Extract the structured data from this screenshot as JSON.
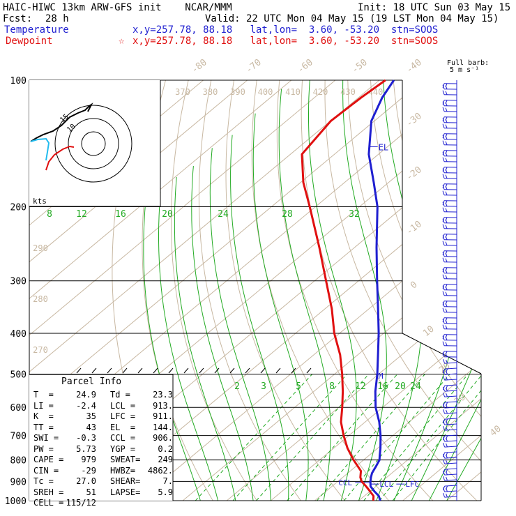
{
  "header": {
    "line1_left": "HAIC-HIWC 13km ARW-GFS init    NCAR/MMM",
    "line1_right": "Init: 18 UTC Sun 03 May 15",
    "fcst_label": "Fcst:",
    "fcst_value": "28 h",
    "valid": "Valid: 22 UTC Mon 04 May 15 (19 LST Mon 04 May 15)",
    "temp_label": "Temperature",
    "temp_info": "x,y=257.78, 88.18   lat,lon=  3.60, -53.20  stn=SOOS",
    "dew_label": "Dewpoint",
    "dew_star": "☆",
    "dew_info": "x,y=257.78, 88.18   lat,lon=  3.60, -53.20  stn=SOOS",
    "barb_title1": "Full barb:",
    "barb_title2": "5 m s⁻¹"
  },
  "hodograph": {
    "kts_label": "kts",
    "ring_labels": [
      "10",
      "15"
    ]
  },
  "parcel": {
    "title": "Parcel Info",
    "rows": [
      [
        "T  =",
        "24.9",
        "Td =",
        "23.3"
      ],
      [
        "LI =",
        "-2.4",
        "LCL =",
        "913."
      ],
      [
        "K  =",
        "35",
        "LFC =",
        "911."
      ],
      [
        "TT =",
        "43",
        "EL  =",
        "144."
      ],
      [
        "SWI =",
        "-0.3",
        "CCL =",
        "906."
      ],
      [
        "PW =",
        "5.73",
        "YGP =",
        "0.2"
      ],
      [
        "CAPE =",
        "979",
        "SWEAT=",
        "249"
      ],
      [
        "CIN =",
        "-29",
        "HWBZ=",
        "4862."
      ],
      [
        "Tc =",
        "27.0",
        "SHEAR=",
        "7."
      ],
      [
        "SREH =",
        "51",
        "LAPSE=",
        "5.9"
      ],
      [
        "CELL =",
        "115/12",
        "",
        ""
      ]
    ]
  },
  "chart_data": {
    "type": "line",
    "title": "",
    "ylabel": "",
    "xlabel": "",
    "y_scale": "log-pressure",
    "ylim_hPa": [
      1000,
      100
    ],
    "pressure_ticks": [
      100,
      200,
      300,
      400,
      500,
      600,
      700,
      800,
      900,
      1000
    ],
    "isotherm_labels": [
      "-80",
      "-70",
      "-60",
      "-50",
      "-40",
      "-30",
      "-20",
      "-10",
      "0",
      "10",
      "20",
      "30",
      "40"
    ],
    "theta_labels_upper": [
      "370",
      "380",
      "390",
      "400",
      "410",
      "420",
      "430",
      "440"
    ],
    "theta_labels_left": [
      "290",
      "280",
      "270"
    ],
    "theta_e_labels": [
      "8",
      "12",
      "16",
      "20",
      "24",
      "28",
      "32"
    ],
    "mixing_ratio_labels": [
      "2",
      "3",
      "5",
      "8",
      "12",
      "16",
      "20",
      "24"
    ],
    "annotations": [
      "EL",
      "M",
      "CCL",
      "LCL",
      "LFC"
    ],
    "series": [
      {
        "name": "Temperature",
        "color": "#1f1fd0",
        "p": [
          1000,
          975,
          950,
          925,
          900,
          880,
          860,
          850,
          830,
          800,
          780,
          750,
          700,
          650,
          600,
          550,
          500,
          450,
          400,
          350,
          300,
          250,
          200,
          175,
          150,
          125,
          110,
          100
        ],
        "t": [
          24.9,
          23.3,
          21.0,
          18.8,
          17.4,
          16.4,
          15.5,
          15.2,
          14.6,
          13.6,
          12.4,
          10.6,
          7.2,
          3.2,
          -1.6,
          -6.0,
          -10.3,
          -15.4,
          -21.1,
          -27.9,
          -35.8,
          -45.0,
          -55.9,
          -63.4,
          -72.2,
          -80.7,
          -84.6,
          -86.7
        ]
      },
      {
        "name": "Dewpoint",
        "color": "#e01010",
        "p": [
          1000,
          975,
          950,
          925,
          900,
          880,
          850,
          800,
          780,
          750,
          700,
          650,
          600,
          550,
          500,
          450,
          400,
          350,
          300,
          250,
          200,
          175,
          150,
          125,
          110,
          100
        ],
        "t": [
          23.3,
          22.1,
          20.0,
          17.8,
          15.4,
          14.0,
          12.4,
          7.7,
          5.9,
          3.1,
          -1.2,
          -5.5,
          -9.2,
          -13.4,
          -18.3,
          -24.0,
          -31.2,
          -38.4,
          -47.4,
          -58.0,
          -71.3,
          -79.4,
          -87.4,
          -89.9,
          -89.4,
          -88.6
        ]
      }
    ],
    "wind_barbs_note": "Wind barbs plotted on right column; full barb = 5 m/s"
  },
  "colors": {
    "temperature": "#1f1fd0",
    "dewpoint": "#e01010",
    "isotherm": "#c8b8a2",
    "dry_adiabat": "#c8b8a2",
    "moist_adiabat": "#22aa22",
    "mixing_ratio": "#22aa22",
    "isobar": "#000000"
  }
}
